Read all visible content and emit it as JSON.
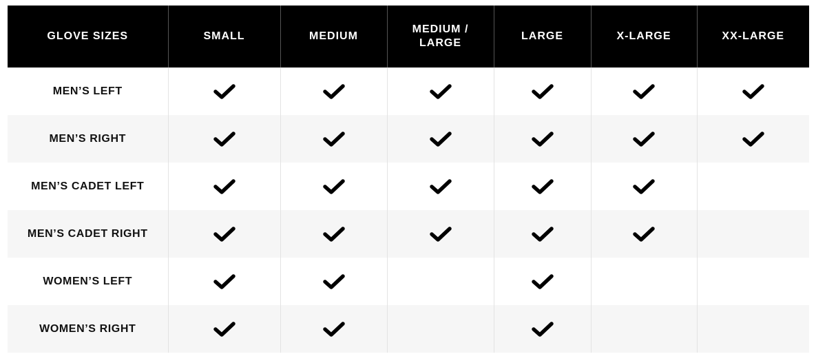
{
  "table": {
    "headers": [
      "GLOVE SIZES",
      "SMALL",
      "MEDIUM",
      "MEDIUM / LARGE",
      "LARGE",
      "X-LARGE",
      "XX-LARGE"
    ],
    "rows": [
      {
        "label": "MEN’S LEFT",
        "available": [
          true,
          true,
          true,
          true,
          true,
          true
        ]
      },
      {
        "label": "MEN’S RIGHT",
        "available": [
          true,
          true,
          true,
          true,
          true,
          true
        ]
      },
      {
        "label": "MEN’S CADET LEFT",
        "available": [
          true,
          true,
          true,
          true,
          true,
          false
        ]
      },
      {
        "label": "MEN’S CADET RIGHT",
        "available": [
          true,
          true,
          true,
          true,
          true,
          false
        ]
      },
      {
        "label": "WOMEN’S LEFT",
        "available": [
          true,
          true,
          false,
          true,
          false,
          false
        ]
      },
      {
        "label": "WOMEN’S RIGHT",
        "available": [
          true,
          true,
          false,
          true,
          false,
          false
        ]
      }
    ],
    "icon": "checkmark-icon",
    "colors": {
      "header_bg": "#000000",
      "header_text": "#ffffff",
      "alt_row_bg": "#f6f6f6"
    }
  }
}
